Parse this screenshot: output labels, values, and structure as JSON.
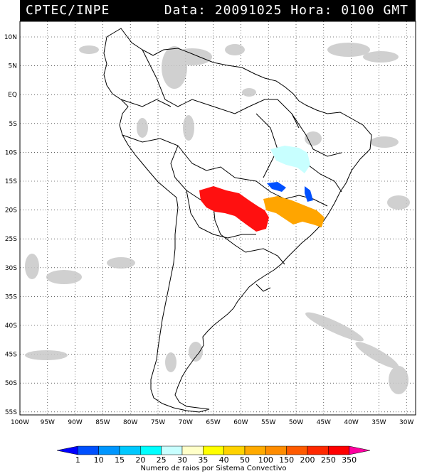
{
  "header": {
    "left": "CPTEC/INPE",
    "right": "Data: 20091025 Hora: 0100 GMT"
  },
  "lat_labels": [
    "10N",
    "5N",
    "EQ",
    "5S",
    "10S",
    "15S",
    "20S",
    "25S",
    "30S",
    "35S",
    "40S",
    "45S",
    "50S",
    "55S"
  ],
  "lon_labels": [
    "100W",
    "95W",
    "90W",
    "85W",
    "80W",
    "75W",
    "70W",
    "65W",
    "60W",
    "55W",
    "50W",
    "45W",
    "40W",
    "35W",
    "30W"
  ],
  "legend": {
    "ticks": [
      "1",
      "10",
      "15",
      "20",
      "25",
      "30",
      "35",
      "40",
      "50",
      "100",
      "150",
      "200",
      "250",
      "350"
    ],
    "title": "Numero de raios por Sistema Convectivo",
    "colors": [
      "#0000ff",
      "#0050ff",
      "#0096ff",
      "#00c8ff",
      "#00ffff",
      "#c8ffff",
      "#ffffc8",
      "#ffff00",
      "#ffd200",
      "#ffaa00",
      "#ff8c00",
      "#ff5a00",
      "#ff2800",
      "#ff0000",
      "#ff00a0"
    ]
  },
  "colors": {
    "coast": "#000000",
    "cloud": "#c8c8c8",
    "header_bg": "#000000"
  }
}
